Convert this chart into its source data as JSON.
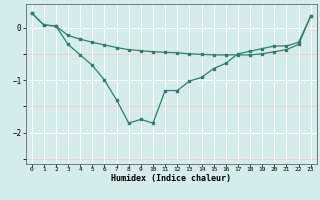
{
  "xlabel": "Humidex (Indice chaleur)",
  "ylabel": "",
  "background_color": "#d4ecec",
  "line_color": "#2e7d6e",
  "grid_color": "#ffffff",
  "grid_color_minor": "#f0c8c8",
  "xlim": [
    -0.5,
    23.5
  ],
  "ylim": [
    -2.6,
    0.45
  ],
  "yticks": [
    0,
    -1,
    -2
  ],
  "xticks": [
    0,
    1,
    2,
    3,
    4,
    5,
    6,
    7,
    8,
    9,
    10,
    11,
    12,
    13,
    14,
    15,
    16,
    17,
    18,
    19,
    20,
    21,
    22,
    23
  ],
  "line1_x": [
    0,
    1,
    2,
    3,
    4,
    5,
    6,
    7,
    8,
    9,
    10,
    11,
    12,
    13,
    14,
    15,
    16,
    17,
    18,
    19,
    20,
    21,
    22,
    23
  ],
  "line1_y": [
    0.28,
    0.05,
    0.03,
    -0.15,
    -0.22,
    -0.28,
    -0.33,
    -0.38,
    -0.42,
    -0.44,
    -0.46,
    -0.47,
    -0.48,
    -0.5,
    -0.51,
    -0.52,
    -0.52,
    -0.52,
    -0.52,
    -0.5,
    -0.46,
    -0.42,
    -0.32,
    0.22
  ],
  "line2_x": [
    0,
    1,
    2,
    3,
    4,
    5,
    6,
    7,
    8,
    9,
    10,
    11,
    12,
    13,
    14,
    15,
    16,
    17,
    18,
    19,
    20,
    21,
    22,
    23
  ],
  "line2_y": [
    0.28,
    0.05,
    0.03,
    -0.32,
    -0.52,
    -0.72,
    -1.0,
    -1.38,
    -1.82,
    -1.75,
    -1.82,
    -1.2,
    -1.2,
    -1.02,
    -0.95,
    -0.78,
    -0.68,
    -0.5,
    -0.45,
    -0.4,
    -0.35,
    -0.35,
    -0.28,
    0.22
  ]
}
